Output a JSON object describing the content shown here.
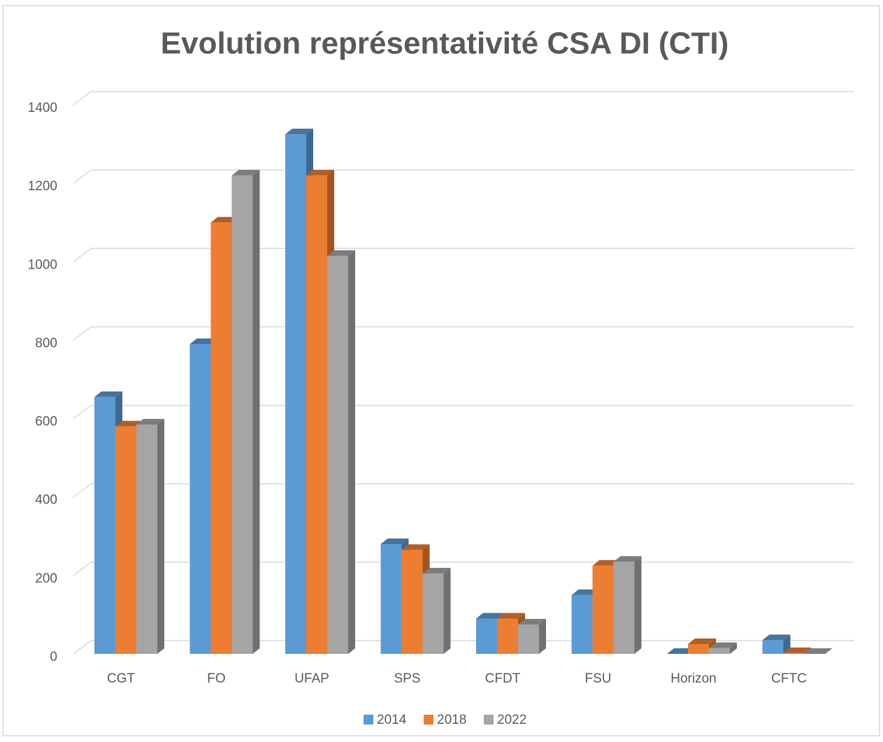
{
  "chart_data": {
    "type": "bar3d",
    "title": "Evolution représentativité CSA DI (CTI)",
    "categories": [
      "CGT",
      "FO",
      "UFAP",
      "SPS",
      "CFDT",
      "FSU",
      "Horizon",
      "CFTC"
    ],
    "series": [
      {
        "name": "2014",
        "color": "#5b9bd5",
        "values": [
          655,
          790,
          1325,
          280,
          90,
          150,
          0,
          35
        ]
      },
      {
        "name": "2018",
        "color": "#ed7d31",
        "values": [
          580,
          1100,
          1220,
          265,
          90,
          225,
          25,
          2
        ]
      },
      {
        "name": "2022",
        "color": "#a5a5a5",
        "values": [
          585,
          1220,
          1015,
          205,
          75,
          235,
          15,
          0
        ]
      }
    ],
    "ylim": [
      0,
      1400
    ],
    "yticks": [
      0,
      200,
      400,
      600,
      800,
      1000,
      1200,
      1400
    ],
    "grid": true,
    "legend": "bottom"
  }
}
